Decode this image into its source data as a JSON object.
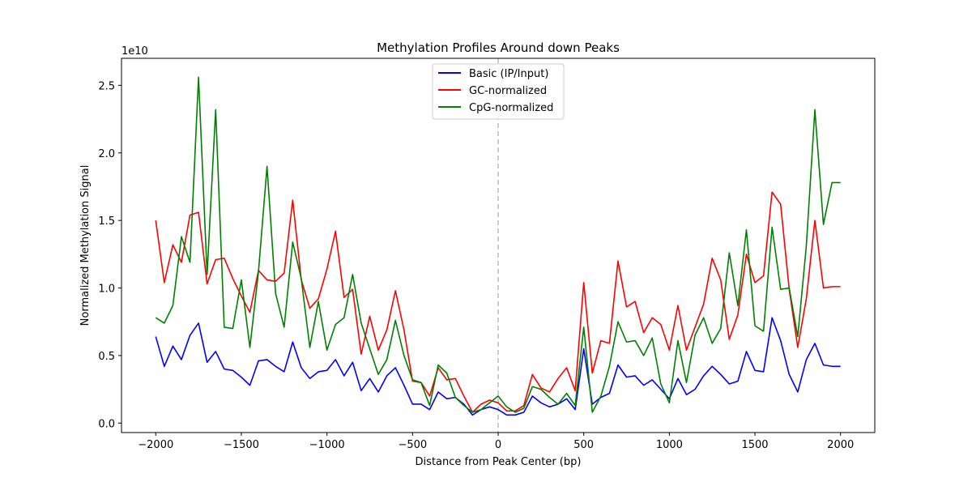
{
  "chart_data": {
    "type": "line",
    "title": "Methylation Profiles Around down Peaks",
    "xlabel": "Distance from Peak Center (bp)",
    "ylabel": "Normalized Methylation Signal",
    "y_offset_label": "1e10",
    "xlim": [
      -2200,
      2200
    ],
    "ylim": [
      -0.07,
      2.7
    ],
    "x_ticks": [
      -2000,
      -1500,
      -1000,
      -500,
      0,
      500,
      1000,
      1500,
      2000
    ],
    "x_tick_labels": [
      "−2000",
      "−1500",
      "−1000",
      "−500",
      "0",
      "500",
      "1000",
      "1500",
      "2000"
    ],
    "y_ticks": [
      0.0,
      0.5,
      1.0,
      1.5,
      2.0,
      2.5
    ],
    "y_tick_labels": [
      "0.0",
      "0.5",
      "1.0",
      "1.5",
      "2.0",
      "2.5"
    ],
    "grid": false,
    "legend_position": "top-center",
    "vline": {
      "x": 0,
      "color": "#bbbbbb",
      "style": "dashed"
    },
    "x": [
      -2000,
      -1950,
      -1900,
      -1850,
      -1800,
      -1750,
      -1700,
      -1650,
      -1600,
      -1550,
      -1500,
      -1450,
      -1400,
      -1350,
      -1300,
      -1250,
      -1200,
      -1150,
      -1100,
      -1050,
      -1000,
      -950,
      -900,
      -850,
      -800,
      -750,
      -700,
      -650,
      -600,
      -550,
      -500,
      -450,
      -400,
      -350,
      -300,
      -250,
      -200,
      -150,
      -100,
      -50,
      0,
      50,
      100,
      150,
      200,
      250,
      300,
      350,
      400,
      450,
      500,
      550,
      600,
      650,
      700,
      750,
      800,
      850,
      900,
      950,
      1000,
      1050,
      1100,
      1150,
      1200,
      1250,
      1300,
      1350,
      1400,
      1450,
      1500,
      1550,
      1600,
      1650,
      1700,
      1750,
      1800,
      1850,
      1900,
      1950,
      2000
    ],
    "series": [
      {
        "name": "Basic (IP/Input)",
        "color": "#0000ff",
        "values": [
          0.64,
          0.42,
          0.57,
          0.47,
          0.65,
          0.74,
          0.45,
          0.53,
          0.4,
          0.39,
          0.34,
          0.28,
          0.46,
          0.47,
          0.42,
          0.38,
          0.6,
          0.41,
          0.33,
          0.38,
          0.39,
          0.47,
          0.35,
          0.45,
          0.24,
          0.33,
          0.23,
          0.35,
          0.41,
          0.28,
          0.14,
          0.14,
          0.1,
          0.23,
          0.18,
          0.19,
          0.14,
          0.06,
          0.1,
          0.12,
          0.1,
          0.06,
          0.06,
          0.08,
          0.2,
          0.15,
          0.12,
          0.14,
          0.18,
          0.1,
          0.55,
          0.14,
          0.19,
          0.22,
          0.43,
          0.34,
          0.35,
          0.28,
          0.32,
          0.25,
          0.18,
          0.33,
          0.21,
          0.25,
          0.35,
          0.42,
          0.36,
          0.29,
          0.31,
          0.53,
          0.39,
          0.38,
          0.78,
          0.61,
          0.36,
          0.23,
          0.47,
          0.59,
          0.43,
          0.42,
          0.42
        ]
      },
      {
        "name": "GC-normalized",
        "color": "#ff0000",
        "values": [
          1.5,
          1.04,
          1.32,
          1.19,
          1.54,
          1.56,
          1.03,
          1.21,
          1.22,
          1.07,
          0.94,
          0.82,
          1.13,
          1.06,
          1.05,
          1.11,
          1.65,
          1.06,
          0.85,
          0.92,
          1.14,
          1.42,
          0.93,
          0.99,
          0.51,
          0.79,
          0.54,
          0.69,
          0.98,
          0.69,
          0.31,
          0.3,
          0.2,
          0.41,
          0.32,
          0.33,
          0.2,
          0.08,
          0.14,
          0.17,
          0.15,
          0.09,
          0.09,
          0.13,
          0.36,
          0.26,
          0.23,
          0.33,
          0.41,
          0.24,
          1.04,
          0.37,
          0.61,
          0.59,
          1.2,
          0.86,
          0.9,
          0.67,
          0.78,
          0.73,
          0.54,
          0.87,
          0.54,
          0.71,
          0.88,
          1.22,
          1.06,
          0.62,
          0.8,
          1.25,
          1.04,
          1.09,
          1.71,
          1.62,
          0.99,
          0.56,
          0.92,
          1.5,
          1.0,
          1.01,
          1.01
        ]
      },
      {
        "name": "CpG-normalized",
        "color": "#008000",
        "values": [
          0.78,
          0.74,
          0.87,
          1.38,
          1.19,
          2.56,
          1.1,
          2.32,
          0.71,
          0.7,
          1.06,
          0.56,
          1.12,
          1.9,
          0.96,
          0.71,
          1.34,
          1.07,
          0.56,
          0.9,
          0.54,
          0.73,
          0.78,
          1.1,
          0.74,
          0.55,
          0.36,
          0.47,
          0.76,
          0.5,
          0.32,
          0.3,
          0.13,
          0.43,
          0.37,
          0.19,
          0.13,
          0.08,
          0.1,
          0.15,
          0.2,
          0.12,
          0.08,
          0.11,
          0.27,
          0.25,
          0.19,
          0.14,
          0.22,
          0.13,
          0.71,
          0.08,
          0.2,
          0.42,
          0.75,
          0.6,
          0.61,
          0.5,
          0.63,
          0.29,
          0.15,
          0.61,
          0.3,
          0.65,
          0.78,
          0.59,
          0.7,
          1.26,
          0.87,
          1.43,
          0.72,
          0.68,
          1.45,
          0.99,
          1.0,
          0.64,
          1.31,
          2.32,
          1.47,
          1.78,
          1.78
        ]
      }
    ]
  }
}
